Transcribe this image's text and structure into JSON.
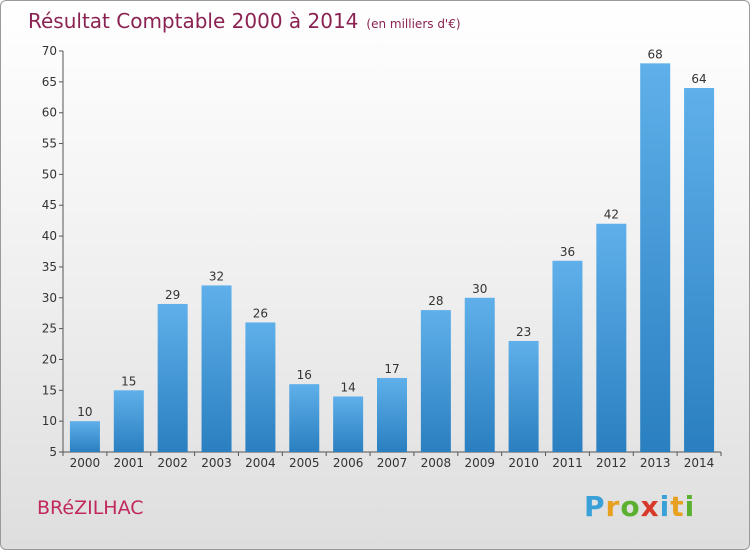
{
  "header": {
    "title": "Résultat Comptable 2000 à 2014",
    "subtitle": "(en milliers d'€)"
  },
  "footer": {
    "commune": "BRéZILHAC",
    "logo": "Proxiti",
    "logo_letters": [
      {
        "char": "P",
        "color": "#3aa0d8"
      },
      {
        "char": "r",
        "color": "#e8a020"
      },
      {
        "char": "o",
        "color": "#5cb030"
      },
      {
        "char": "x",
        "color": "#d83a2a"
      },
      {
        "char": "i",
        "color": "#3aa0d8"
      },
      {
        "char": "t",
        "color": "#e8a020"
      },
      {
        "char": "i",
        "color": "#5cb030"
      }
    ]
  },
  "colors": {
    "bar_light": "#5fb0ea",
    "bar_dark": "#2a7fc0",
    "title": "#8a2252",
    "commune": "#c0285e"
  },
  "chart_data": {
    "type": "bar",
    "title": "Résultat Comptable 2000 à 2014",
    "subtitle": "(en milliers d'€)",
    "categories": [
      "2000",
      "2001",
      "2002",
      "2003",
      "2004",
      "2005",
      "2006",
      "2007",
      "2008",
      "2009",
      "2010",
      "2011",
      "2012",
      "2013",
      "2014"
    ],
    "values": [
      10,
      15,
      29,
      32,
      26,
      16,
      14,
      17,
      28,
      30,
      23,
      36,
      42,
      68,
      64
    ],
    "ylim": [
      5,
      70
    ],
    "yticks": [
      5,
      10,
      15,
      20,
      25,
      30,
      35,
      40,
      45,
      50,
      55,
      60,
      65,
      70
    ],
    "grid": false,
    "xlabel": "",
    "ylabel": ""
  }
}
